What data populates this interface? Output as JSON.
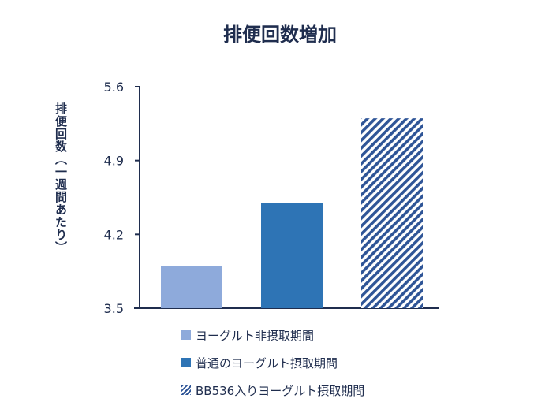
{
  "chart_data": {
    "type": "bar",
    "title": "排便回数増加",
    "xlabel": "",
    "ylabel": "排便回数（一週間あたり）",
    "ylim": [
      3.5,
      5.6
    ],
    "yticks": [
      "3.5",
      "4.2",
      "4.9",
      "5.6"
    ],
    "categories": [
      "ヨーグルト非摂取期間",
      "普通のヨーグルト摂取期間",
      "BB536入りヨーグルト摂取期間"
    ],
    "values": [
      3.9,
      4.5,
      5.3
    ],
    "colors": [
      "#8eaadb",
      "#2e74b5",
      "#2f5597"
    ],
    "patterns": [
      "solid",
      "solid",
      "diagonal-hatch"
    ],
    "grid": false,
    "legend_position": "bottom"
  }
}
